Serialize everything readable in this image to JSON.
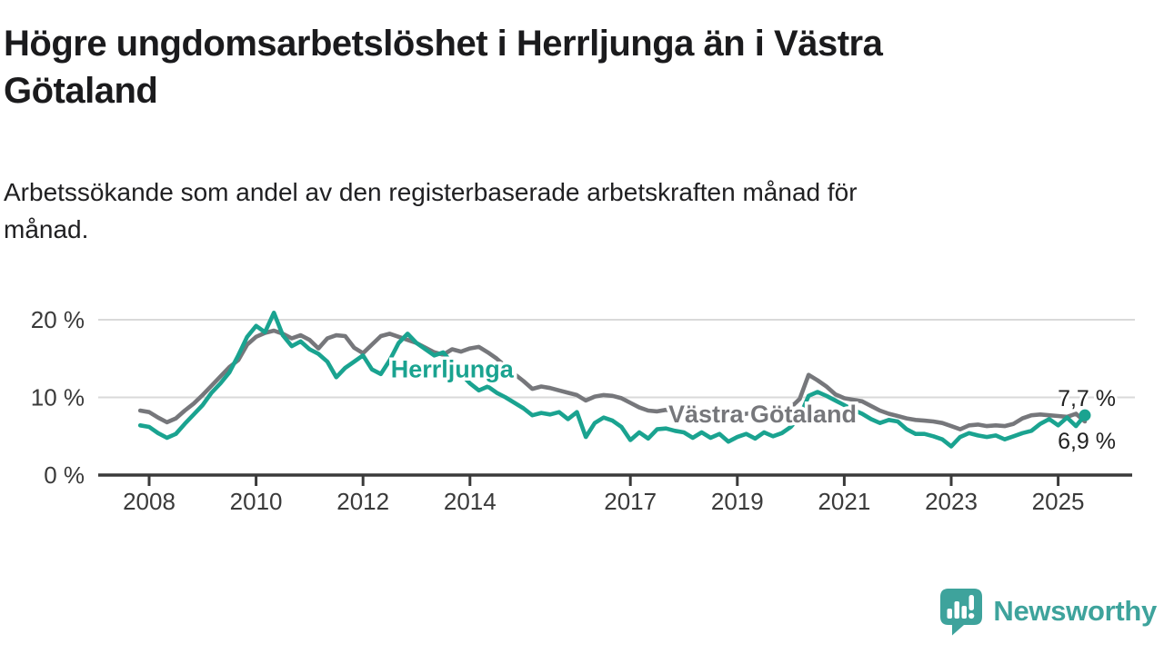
{
  "title": {
    "line1": "Högre ungdomsarbetslöshet i Herrljunga än i Västra",
    "line2": "Götaland"
  },
  "subtitle": {
    "line1": "Arbetssökande som andel av den registerbaserade arbetskraften månad för",
    "line2": "månad."
  },
  "footer": {
    "brand": "Newsworthy",
    "logo_icon": "newsworthy-speech-bubble-bar-chart-icon"
  },
  "colors": {
    "accent_teal": "#1aa390",
    "series_gray": "#76777b",
    "axis": "#3a3a3a",
    "gridline": "#d9d9d9",
    "text_dark": "#1b1b1d",
    "logo_teal": "#3ea39c"
  },
  "chart_data": {
    "type": "line",
    "title": "Högre ungdomsarbetslöshet i Herrljunga än i Västra Götaland",
    "subtitle": "Arbetssökande som andel av den registerbaserade arbetskraften månad för månad.",
    "unit": "%",
    "x_start": 2007.8333,
    "x_step": 0.166667,
    "x_tick_years": [
      2008,
      2010,
      2012,
      2014,
      2017,
      2019,
      2021,
      2023,
      2025
    ],
    "x_tick_labels": [
      "2008",
      "2010",
      "2012",
      "2014",
      "2017",
      "2019",
      "2021",
      "2023",
      "2025"
    ],
    "y_ticks": [
      0,
      10,
      20
    ],
    "y_tick_labels": [
      "0 %",
      "10 %",
      "20 %"
    ],
    "ylim": [
      0,
      23.7
    ],
    "grid": "horizontal",
    "legend_position": "inline-labels",
    "series": [
      {
        "name": "Västra Götaland",
        "color": "#76777b",
        "end_label": "6,9 %",
        "end_value": 6.9,
        "end_dot": false,
        "label_year": 2017.71,
        "label_value": 6.8,
        "values": [
          8.3,
          8.1,
          7.4,
          6.8,
          7.3,
          8.3,
          9.2,
          10.3,
          11.5,
          12.7,
          13.9,
          14.8,
          16.8,
          17.8,
          18.3,
          18.6,
          18.2,
          17.6,
          18.0,
          17.4,
          16.3,
          17.6,
          18.0,
          17.9,
          16.4,
          15.7,
          16.8,
          17.9,
          18.2,
          17.8,
          17.4,
          17.0,
          16.4,
          15.8,
          15.5,
          16.2,
          15.9,
          16.3,
          16.5,
          15.8,
          15.0,
          14.0,
          13.0,
          12.1,
          11.1,
          11.4,
          11.2,
          10.9,
          10.6,
          10.3,
          9.6,
          10.1,
          10.3,
          10.2,
          9.9,
          9.3,
          8.7,
          8.3,
          8.2,
          8.4,
          8.1,
          7.9,
          7.7,
          7.9,
          7.8,
          7.6,
          7.8,
          7.7,
          7.9,
          8.0,
          8.2,
          8.1,
          8.4,
          8.7,
          9.8,
          12.9,
          12.2,
          11.4,
          10.4,
          9.9,
          9.7,
          9.5,
          8.9,
          8.3,
          7.9,
          7.6,
          7.3,
          7.1,
          7.0,
          6.9,
          6.7,
          6.3,
          5.9,
          6.4,
          6.5,
          6.3,
          6.4,
          6.3,
          6.6,
          7.3,
          7.7,
          7.8,
          7.7,
          7.6,
          7.5,
          7.9,
          6.9
        ]
      },
      {
        "name": "Herrljunga",
        "color": "#1aa390",
        "end_label": "7,7 %",
        "end_value": 7.7,
        "end_dot": true,
        "label_year": 2012.52,
        "label_value": 12.6,
        "values": [
          6.4,
          6.2,
          5.4,
          4.8,
          5.3,
          6.6,
          7.8,
          9.0,
          10.6,
          11.8,
          13.2,
          15.4,
          17.8,
          19.2,
          18.4,
          20.9,
          18.0,
          16.6,
          17.2,
          16.2,
          15.6,
          14.6,
          12.6,
          13.8,
          14.6,
          15.4,
          13.6,
          13.0,
          14.8,
          17.0,
          18.2,
          17.0,
          16.2,
          15.4,
          15.8,
          14.4,
          13.0,
          11.8,
          10.9,
          11.4,
          10.6,
          10.0,
          9.3,
          8.6,
          7.7,
          8.0,
          7.8,
          8.1,
          7.2,
          8.1,
          4.9,
          6.7,
          7.4,
          7.0,
          6.2,
          4.5,
          5.5,
          4.7,
          5.9,
          6.0,
          5.7,
          5.5,
          4.8,
          5.5,
          4.8,
          5.3,
          4.3,
          4.9,
          5.3,
          4.7,
          5.5,
          5.0,
          5.4,
          6.2,
          7.5,
          10.2,
          10.7,
          10.2,
          9.6,
          9.0,
          8.4,
          7.9,
          7.2,
          6.7,
          7.1,
          6.9,
          5.9,
          5.3,
          5.3,
          5.0,
          4.6,
          3.7,
          4.9,
          5.4,
          5.1,
          4.9,
          5.1,
          4.6,
          5.0,
          5.4,
          5.7,
          6.6,
          7.2,
          6.4,
          7.4,
          6.3,
          7.7
        ]
      }
    ]
  }
}
